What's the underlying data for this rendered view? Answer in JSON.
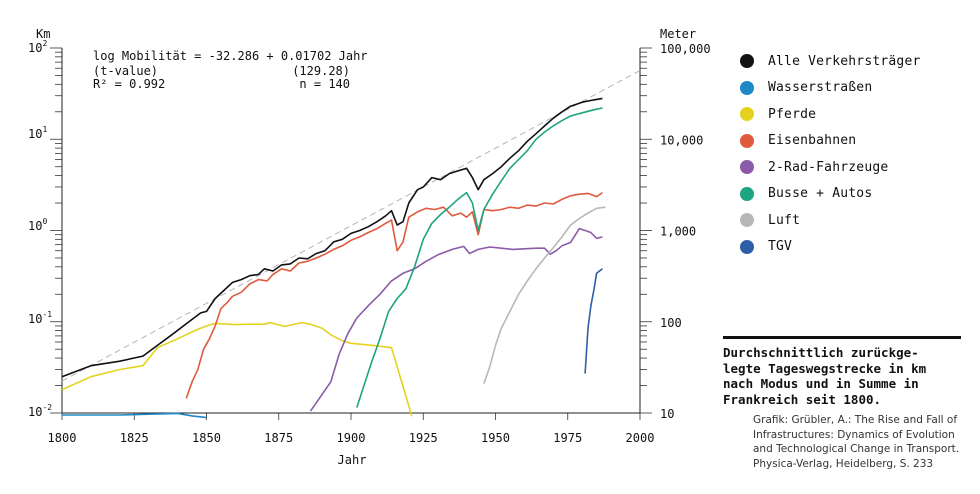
{
  "chart_data": {
    "type": "line",
    "y_scale": "log",
    "xlabel": "Jahr",
    "ylabel_left": "Km",
    "ylabel_right": "Meter",
    "xlim": [
      1800,
      2000
    ],
    "ylim": [
      0.01,
      100
    ],
    "x_ticks": [
      "1800",
      "1825",
      "1850",
      "1875",
      "1900",
      "1925",
      "1950",
      "1975",
      "2000"
    ],
    "right_ticks": [
      "100,000",
      "10,000",
      "1,000",
      "100",
      "10"
    ],
    "equation": {
      "line1": "log Mobilität = -32.286 + 0.01702 Jahr",
      "tlabel": "(t-value)",
      "tvalue": "(129.28)",
      "r2": "R² = 0.992",
      "n": "n  =  140"
    },
    "trend": {
      "intercept": -32.286,
      "slope": 0.01702,
      "color": "#b5b5b5"
    },
    "series": [
      {
        "name": "Alle Verkehrsträger",
        "color": "#111111",
        "points": [
          [
            1800,
            0.025
          ],
          [
            1810,
            0.033
          ],
          [
            1820,
            0.037
          ],
          [
            1828,
            0.042
          ],
          [
            1833,
            0.055
          ],
          [
            1838,
            0.072
          ],
          [
            1843,
            0.095
          ],
          [
            1848,
            0.125
          ],
          [
            1850,
            0.13
          ],
          [
            1853,
            0.18
          ],
          [
            1856,
            0.22
          ],
          [
            1859,
            0.27
          ],
          [
            1862,
            0.29
          ],
          [
            1865,
            0.32
          ],
          [
            1868,
            0.33
          ],
          [
            1870,
            0.38
          ],
          [
            1873,
            0.36
          ],
          [
            1876,
            0.42
          ],
          [
            1879,
            0.43
          ],
          [
            1882,
            0.5
          ],
          [
            1885,
            0.49
          ],
          [
            1888,
            0.56
          ],
          [
            1891,
            0.6
          ],
          [
            1894,
            0.75
          ],
          [
            1897,
            0.8
          ],
          [
            1900,
            0.93
          ],
          [
            1903,
            1.0
          ],
          [
            1906,
            1.1
          ],
          [
            1909,
            1.25
          ],
          [
            1912,
            1.45
          ],
          [
            1914,
            1.65
          ],
          [
            1916,
            1.15
          ],
          [
            1918,
            1.25
          ],
          [
            1920,
            2.0
          ],
          [
            1923,
            2.8
          ],
          [
            1925,
            3.0
          ],
          [
            1928,
            3.8
          ],
          [
            1931,
            3.6
          ],
          [
            1934,
            4.2
          ],
          [
            1937,
            4.5
          ],
          [
            1940,
            4.8
          ],
          [
            1942,
            3.8
          ],
          [
            1944,
            2.8
          ],
          [
            1946,
            3.6
          ],
          [
            1949,
            4.2
          ],
          [
            1952,
            5.0
          ],
          [
            1955,
            6.2
          ],
          [
            1958,
            7.5
          ],
          [
            1961,
            9.5
          ],
          [
            1964,
            11.5
          ],
          [
            1967,
            14.0
          ],
          [
            1970,
            17.0
          ],
          [
            1973,
            20.0
          ],
          [
            1976,
            23.0
          ],
          [
            1980,
            25.5
          ],
          [
            1984,
            27.0
          ],
          [
            1987,
            28.0
          ]
        ]
      },
      {
        "name": "Wasserstraßen",
        "color": "#1e88c8",
        "points": [
          [
            1800,
            0.0095
          ],
          [
            1810,
            0.0095
          ],
          [
            1820,
            0.0095
          ],
          [
            1830,
            0.0097
          ],
          [
            1840,
            0.0099
          ],
          [
            1845,
            0.0093
          ],
          [
            1850,
            0.0089
          ]
        ]
      },
      {
        "name": "Pferde",
        "color": "#e5d21f",
        "points": [
          [
            1800,
            0.018
          ],
          [
            1810,
            0.025
          ],
          [
            1820,
            0.03
          ],
          [
            1828,
            0.033
          ],
          [
            1833,
            0.052
          ],
          [
            1840,
            0.065
          ],
          [
            1846,
            0.08
          ],
          [
            1850,
            0.09
          ],
          [
            1853,
            0.096
          ],
          [
            1860,
            0.093
          ],
          [
            1865,
            0.094
          ],
          [
            1870,
            0.094
          ],
          [
            1872,
            0.098
          ],
          [
            1877,
            0.089
          ],
          [
            1883,
            0.098
          ],
          [
            1886,
            0.094
          ],
          [
            1890,
            0.085
          ],
          [
            1893,
            0.072
          ],
          [
            1897,
            0.062
          ],
          [
            1900,
            0.058
          ],
          [
            1905,
            0.056
          ],
          [
            1910,
            0.054
          ],
          [
            1914,
            0.052
          ],
          [
            1917,
            0.025
          ],
          [
            1920,
            0.012
          ],
          [
            1921,
            0.0092
          ]
        ]
      },
      {
        "name": "Eisenbahnen",
        "color": "#e05a3e",
        "points": [
          [
            1843,
            0.0145
          ],
          [
            1845,
            0.022
          ],
          [
            1847,
            0.03
          ],
          [
            1849,
            0.05
          ],
          [
            1851,
            0.065
          ],
          [
            1853,
            0.09
          ],
          [
            1855,
            0.14
          ],
          [
            1857,
            0.16
          ],
          [
            1859,
            0.19
          ],
          [
            1862,
            0.21
          ],
          [
            1865,
            0.26
          ],
          [
            1868,
            0.29
          ],
          [
            1871,
            0.28
          ],
          [
            1873,
            0.33
          ],
          [
            1876,
            0.38
          ],
          [
            1879,
            0.36
          ],
          [
            1882,
            0.44
          ],
          [
            1885,
            0.46
          ],
          [
            1888,
            0.5
          ],
          [
            1891,
            0.55
          ],
          [
            1894,
            0.62
          ],
          [
            1897,
            0.68
          ],
          [
            1900,
            0.78
          ],
          [
            1903,
            0.85
          ],
          [
            1906,
            0.95
          ],
          [
            1909,
            1.05
          ],
          [
            1912,
            1.2
          ],
          [
            1914,
            1.3
          ],
          [
            1916,
            0.6
          ],
          [
            1918,
            0.75
          ],
          [
            1920,
            1.4
          ],
          [
            1923,
            1.6
          ],
          [
            1926,
            1.75
          ],
          [
            1929,
            1.7
          ],
          [
            1932,
            1.8
          ],
          [
            1935,
            1.45
          ],
          [
            1938,
            1.55
          ],
          [
            1940,
            1.4
          ],
          [
            1942,
            1.6
          ],
          [
            1944,
            0.9
          ],
          [
            1946,
            1.7
          ],
          [
            1949,
            1.65
          ],
          [
            1952,
            1.7
          ],
          [
            1955,
            1.8
          ],
          [
            1958,
            1.75
          ],
          [
            1961,
            1.9
          ],
          [
            1964,
            1.85
          ],
          [
            1967,
            2.0
          ],
          [
            1970,
            1.95
          ],
          [
            1973,
            2.2
          ],
          [
            1976,
            2.4
          ],
          [
            1979,
            2.5
          ],
          [
            1982,
            2.55
          ],
          [
            1985,
            2.35
          ],
          [
            1987,
            2.6
          ]
        ]
      },
      {
        "name": "2-Rad-Fahrzeuge",
        "color": "#8b5aa8",
        "points": [
          [
            1886,
            0.0105
          ],
          [
            1890,
            0.016
          ],
          [
            1893,
            0.022
          ],
          [
            1896,
            0.045
          ],
          [
            1899,
            0.075
          ],
          [
            1902,
            0.11
          ],
          [
            1906,
            0.15
          ],
          [
            1910,
            0.2
          ],
          [
            1914,
            0.28
          ],
          [
            1918,
            0.34
          ],
          [
            1922,
            0.38
          ],
          [
            1926,
            0.46
          ],
          [
            1930,
            0.54
          ],
          [
            1935,
            0.62
          ],
          [
            1939,
            0.67
          ],
          [
            1941,
            0.56
          ],
          [
            1944,
            0.62
          ],
          [
            1948,
            0.66
          ],
          [
            1952,
            0.64
          ],
          [
            1956,
            0.62
          ],
          [
            1960,
            0.63
          ],
          [
            1964,
            0.64
          ],
          [
            1967,
            0.64
          ],
          [
            1969,
            0.55
          ],
          [
            1971,
            0.6
          ],
          [
            1973,
            0.68
          ],
          [
            1976,
            0.74
          ],
          [
            1979,
            1.05
          ],
          [
            1981,
            1.0
          ],
          [
            1983,
            0.95
          ],
          [
            1985,
            0.82
          ],
          [
            1987,
            0.85
          ]
        ]
      },
      {
        "name": "Busse + Autos",
        "color": "#1ea383",
        "points": [
          [
            1902,
            0.0115
          ],
          [
            1904,
            0.018
          ],
          [
            1907,
            0.035
          ],
          [
            1910,
            0.065
          ],
          [
            1913,
            0.13
          ],
          [
            1916,
            0.18
          ],
          [
            1919,
            0.23
          ],
          [
            1922,
            0.4
          ],
          [
            1925,
            0.8
          ],
          [
            1928,
            1.2
          ],
          [
            1931,
            1.5
          ],
          [
            1934,
            1.8
          ],
          [
            1937,
            2.2
          ],
          [
            1940,
            2.6
          ],
          [
            1942,
            2.0
          ],
          [
            1944,
            1.0
          ],
          [
            1946,
            1.7
          ],
          [
            1949,
            2.5
          ],
          [
            1952,
            3.5
          ],
          [
            1955,
            4.8
          ],
          [
            1958,
            6.0
          ],
          [
            1961,
            7.5
          ],
          [
            1964,
            10.0
          ],
          [
            1967,
            12.0
          ],
          [
            1970,
            14.0
          ],
          [
            1973,
            16.0
          ],
          [
            1976,
            18.0
          ],
          [
            1980,
            19.5
          ],
          [
            1984,
            21.0
          ],
          [
            1987,
            22.0
          ]
        ]
      },
      {
        "name": "Luft",
        "color": "#b8b8b8",
        "points": [
          [
            1946,
            0.021
          ],
          [
            1948,
            0.032
          ],
          [
            1950,
            0.055
          ],
          [
            1952,
            0.085
          ],
          [
            1955,
            0.13
          ],
          [
            1958,
            0.2
          ],
          [
            1961,
            0.28
          ],
          [
            1964,
            0.38
          ],
          [
            1967,
            0.5
          ],
          [
            1970,
            0.65
          ],
          [
            1973,
            0.85
          ],
          [
            1976,
            1.15
          ],
          [
            1979,
            1.35
          ],
          [
            1982,
            1.55
          ],
          [
            1985,
            1.75
          ],
          [
            1988,
            1.8
          ]
        ]
      },
      {
        "name": "TGV",
        "color": "#2e5ea8",
        "points": [
          [
            1981,
            0.027
          ],
          [
            1982,
            0.085
          ],
          [
            1983,
            0.15
          ],
          [
            1984,
            0.22
          ],
          [
            1985,
            0.34
          ],
          [
            1987,
            0.38
          ]
        ]
      }
    ]
  },
  "caption": {
    "title_lines": [
      "Durchschnittlich zurückge-",
      "legte Tageswegstrecke in km",
      "nach Modus und in Summe in",
      "Frankreich seit 1800."
    ],
    "source_lines": [
      "Grafik: Grübler, A.: The Rise and Fall of",
      "Infrastructures: Dynamics of Evolution",
      "and Technological Change in Transport.",
      "Physica-Verlag, Heidelberg, S. 233"
    ]
  }
}
